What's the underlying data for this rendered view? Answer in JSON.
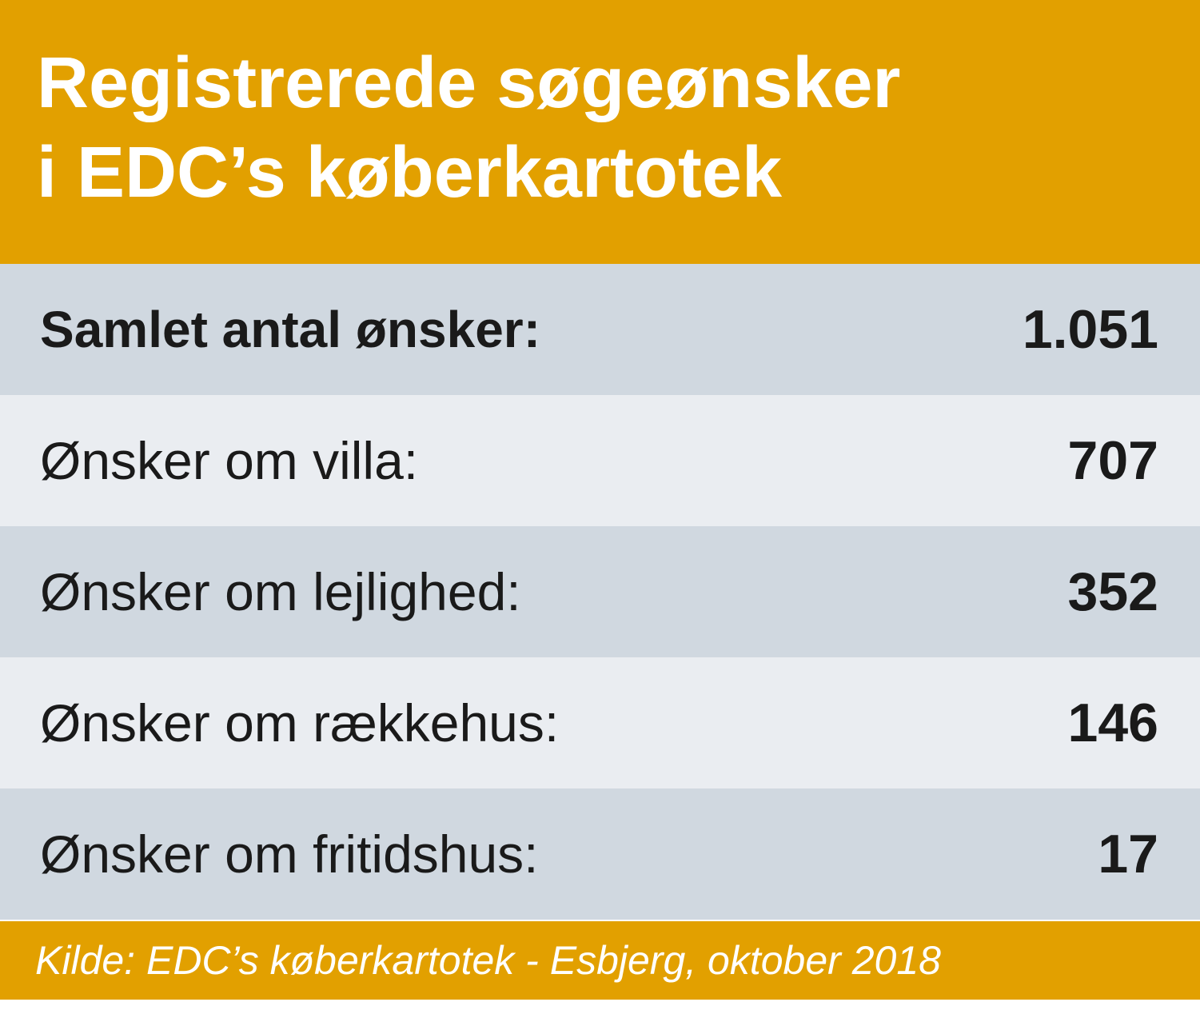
{
  "colors": {
    "header_bg": "#e2a000",
    "row_dark": "#d0d8e0",
    "row_light": "#eaedf1",
    "text": "#1a1a1a",
    "header_text": "#ffffff"
  },
  "header": {
    "title_line1": "Registrerede søgeønsker",
    "title_line2": "i EDC’s køberkartotek"
  },
  "chart_data": {
    "type": "table",
    "title": "Registrerede søgeønsker i EDC’s køberkartotek",
    "rows": [
      {
        "label": "Samlet antal ønsker:",
        "value_text": "1.051",
        "value": 1051,
        "bold": true
      },
      {
        "label": "Ønsker om villa:",
        "value_text": "707",
        "value": 707
      },
      {
        "label": "Ønsker om lejlighed:",
        "value_text": "352",
        "value": 352
      },
      {
        "label": "Ønsker om rækkehus:",
        "value_text": "146",
        "value": 146
      },
      {
        "label": "Ønsker om fritidshus:",
        "value_text": "17",
        "value": 17
      }
    ],
    "source": "Kilde: EDC’s køberkartotek - Esbjerg, oktober 2018"
  }
}
